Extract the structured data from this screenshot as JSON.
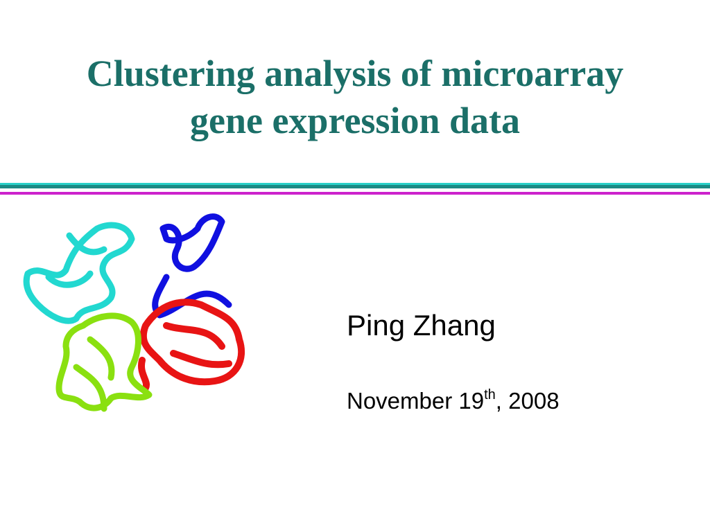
{
  "title": {
    "lines": [
      "Clustering analysis of microarray",
      "gene expression data"
    ]
  },
  "author": "Ping Zhang",
  "date": {
    "main": "November 19",
    "superscript": "th",
    "rest": ", 2008"
  }
}
